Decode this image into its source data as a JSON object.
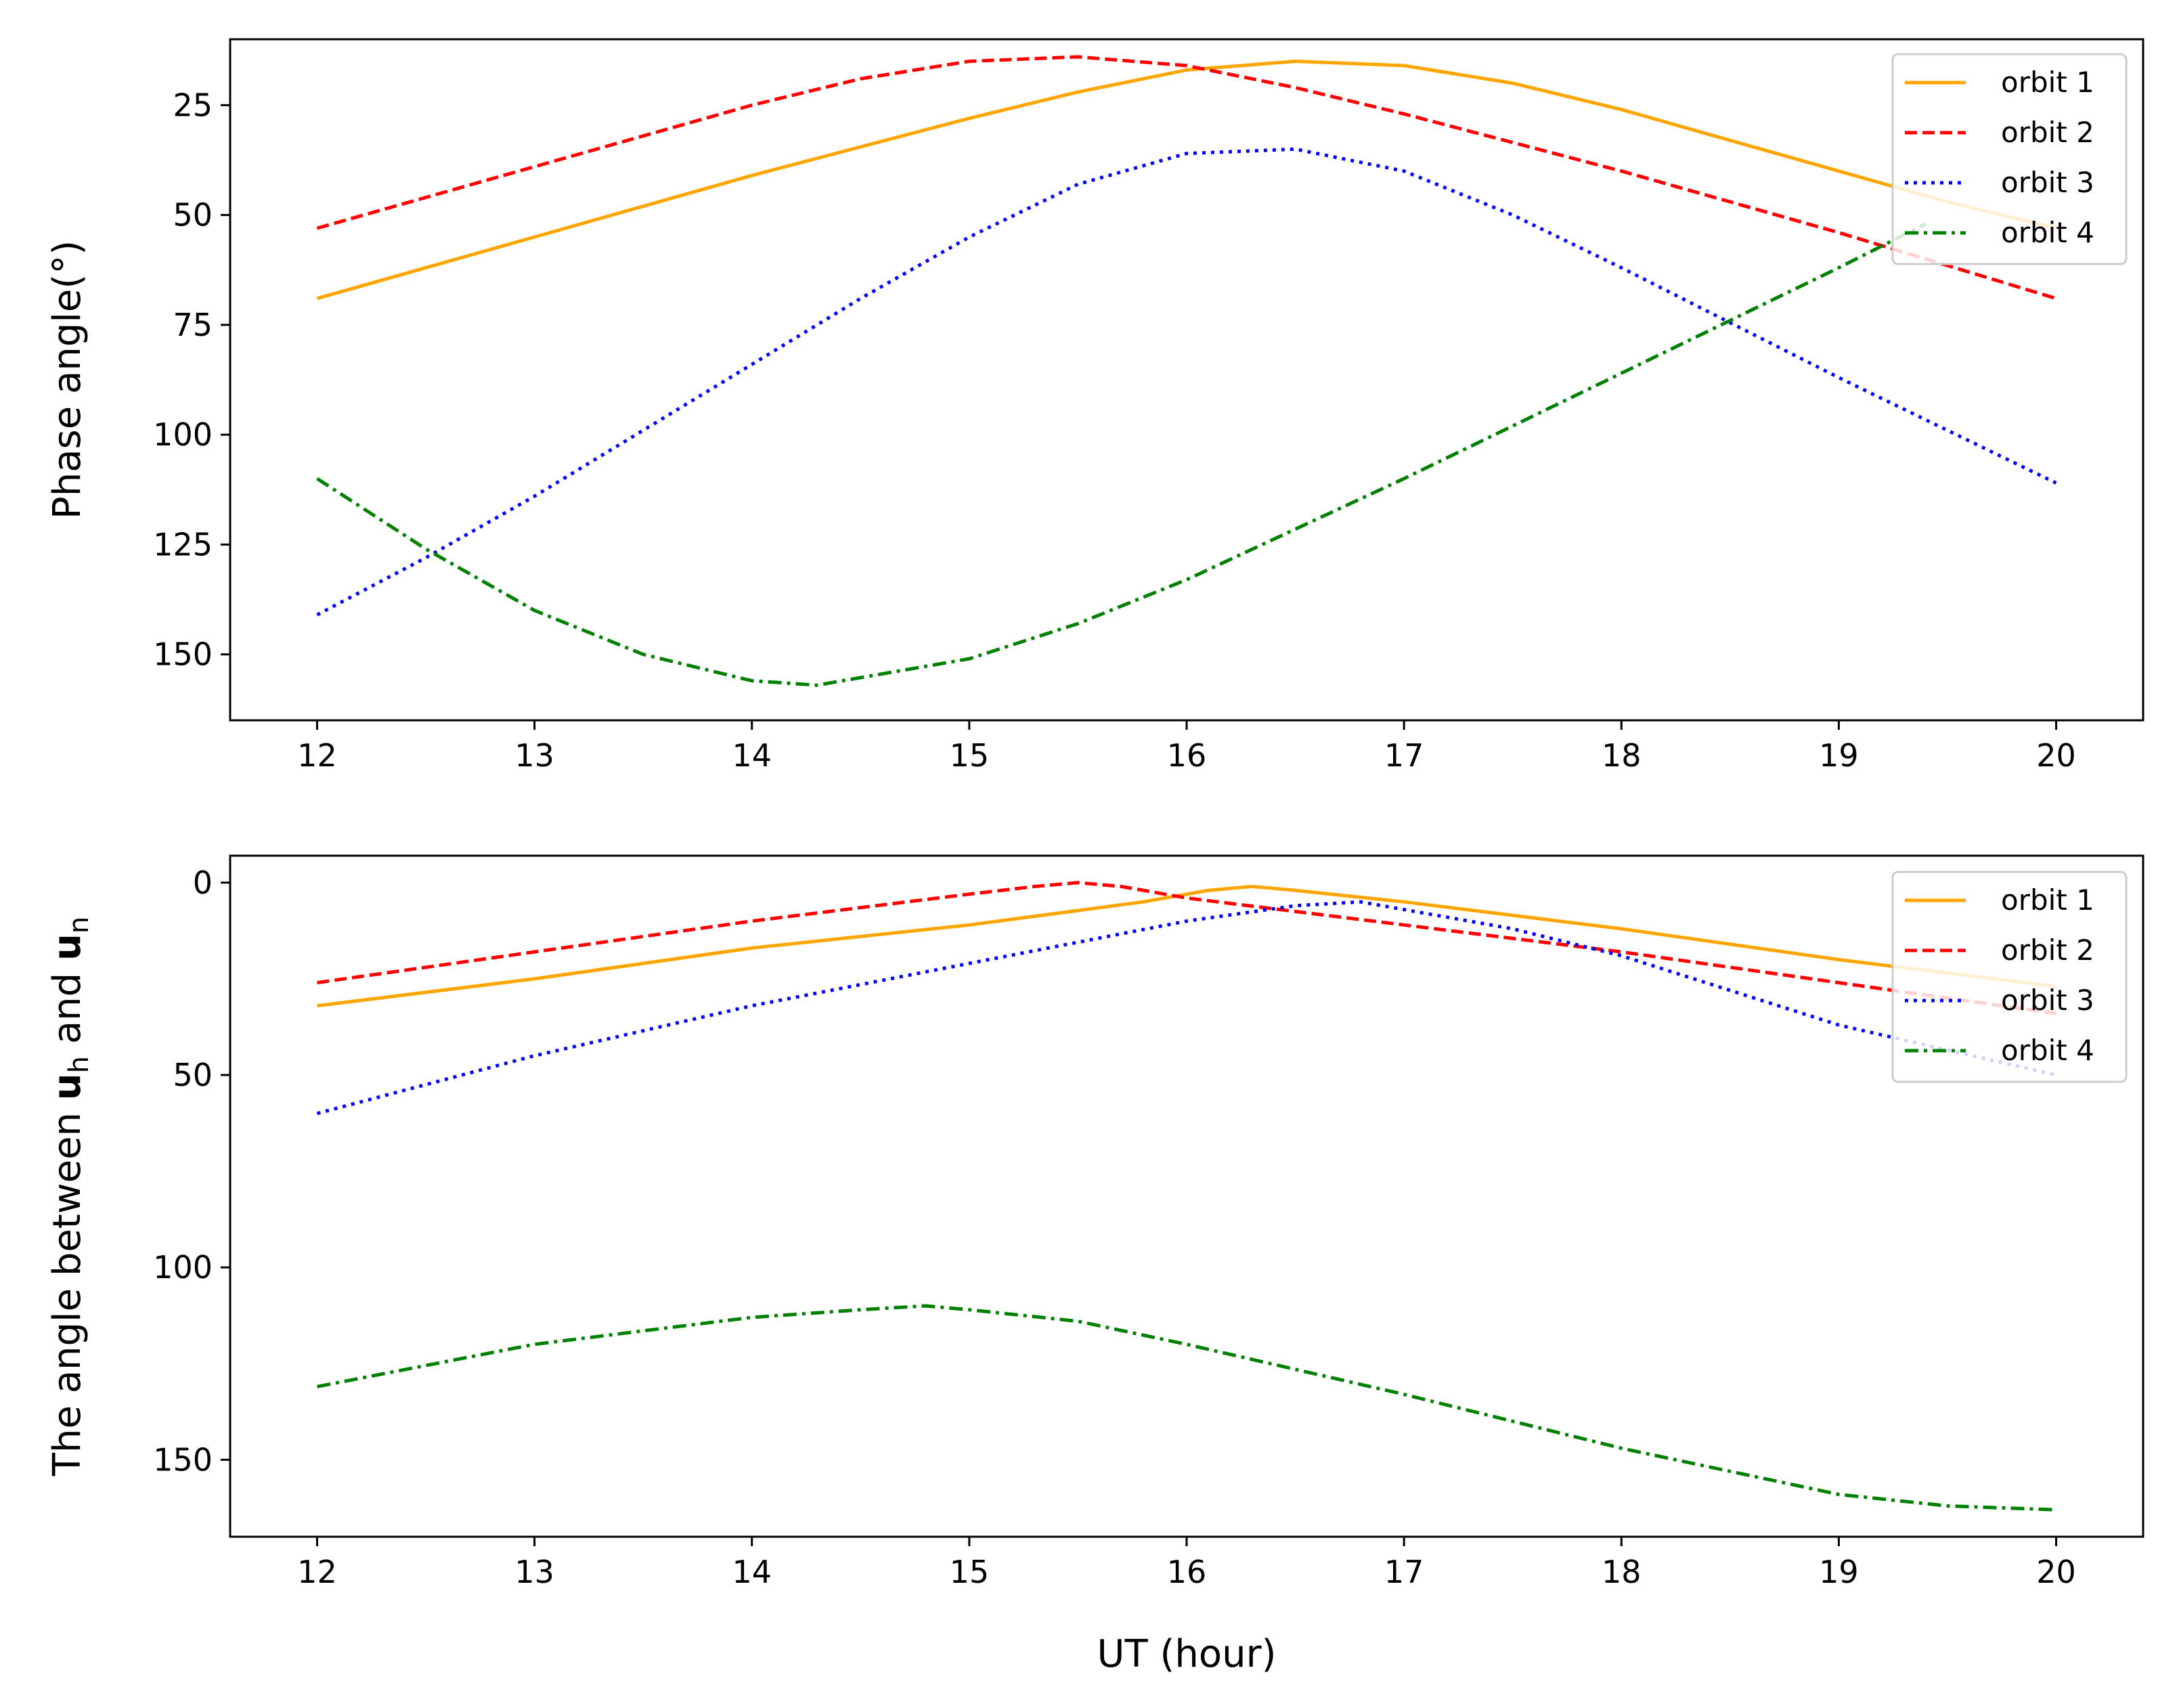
{
  "chart_data": [
    {
      "type": "line",
      "xlabel": "",
      "ylabel": "Phase angle(°)",
      "xlim": [
        11.6,
        20.4
      ],
      "ylim": [
        165,
        10
      ],
      "y_inverted": true,
      "xticks": [
        12,
        13,
        14,
        15,
        16,
        17,
        18,
        19,
        20
      ],
      "xtick_labels": [
        "12",
        "13",
        "14",
        "15",
        "16",
        "17",
        "18",
        "19",
        "20"
      ],
      "yticks": [
        25,
        50,
        75,
        100,
        125,
        150
      ],
      "ytick_labels": [
        "25",
        "50",
        "75",
        "100",
        "125",
        "150"
      ],
      "legend_position": "upper-right",
      "series": [
        {
          "name": "orbit 1",
          "color": "#ffa500",
          "style": "solid",
          "x": [
            12,
            13,
            14,
            15,
            15.5,
            16,
            16.5,
            17,
            17.5,
            18,
            18.5,
            19,
            19.5,
            20
          ],
          "y": [
            69,
            55,
            41,
            28,
            22,
            17,
            15,
            16,
            20,
            26,
            33,
            40,
            47,
            53
          ]
        },
        {
          "name": "orbit 2",
          "color": "#ff0000",
          "style": "dashed",
          "x": [
            12,
            13,
            14,
            14.5,
            15,
            15.5,
            16,
            16.5,
            17,
            18,
            19,
            20
          ],
          "y": [
            53,
            39,
            25,
            19,
            15,
            14,
            16,
            21,
            27,
            40,
            54,
            69
          ]
        },
        {
          "name": "orbit 3",
          "color": "#0000ff",
          "style": "dotted",
          "x": [
            12,
            12.5,
            13,
            13.5,
            14,
            14.5,
            15,
            15.5,
            16,
            16.5,
            17,
            17.5,
            18,
            19,
            20
          ],
          "y": [
            141,
            128,
            114,
            99,
            84,
            69,
            55,
            43,
            36,
            35,
            40,
            50,
            62,
            87,
            111
          ]
        },
        {
          "name": "orbit 4",
          "color": "#008000",
          "style": "dashdot",
          "x": [
            12,
            12.5,
            13,
            13.5,
            14,
            14.3,
            15,
            15.5,
            16,
            17,
            18,
            19,
            19.4
          ],
          "y": [
            110,
            126,
            140,
            150,
            156,
            157,
            151,
            143,
            133,
            110,
            86,
            62,
            52
          ]
        }
      ]
    },
    {
      "type": "line",
      "xlabel": "UT (hour)",
      "ylabel": "The angle between uₕ and uₙ",
      "ylabel_parts": [
        "The angle between ",
        "u",
        "h",
        " and ",
        "u",
        "n"
      ],
      "xlim": [
        11.6,
        20.4
      ],
      "ylim": [
        170,
        -7
      ],
      "y_inverted": true,
      "xticks": [
        12,
        13,
        14,
        15,
        16,
        17,
        18,
        19,
        20
      ],
      "xtick_labels": [
        "12",
        "13",
        "14",
        "15",
        "16",
        "17",
        "18",
        "19",
        "20"
      ],
      "yticks": [
        0,
        50,
        100,
        150
      ],
      "ytick_labels": [
        "0",
        "50",
        "100",
        "150"
      ],
      "legend_position": "upper-right",
      "series": [
        {
          "name": "orbit 1",
          "color": "#ffa500",
          "style": "solid",
          "x": [
            12,
            13,
            14,
            15,
            15.8,
            16.1,
            16.3,
            16.5,
            17,
            18,
            19,
            20
          ],
          "y": [
            32,
            25,
            17,
            11,
            5,
            2,
            1,
            2,
            5,
            12,
            20,
            27
          ]
        },
        {
          "name": "orbit 2",
          "color": "#ff0000",
          "style": "dashed",
          "x": [
            12,
            13,
            14,
            15,
            15.3,
            15.5,
            15.7,
            16,
            17,
            18,
            19,
            20
          ],
          "y": [
            26,
            18,
            10,
            3,
            1,
            0,
            1,
            4,
            11,
            18,
            26,
            34
          ]
        },
        {
          "name": "orbit 3",
          "color": "#0000ff",
          "style": "dotted",
          "x": [
            12,
            13,
            14,
            15,
            16,
            16.5,
            16.8,
            17,
            17.5,
            18,
            19,
            20
          ],
          "y": [
            60,
            45,
            32,
            21,
            10,
            6,
            5,
            7,
            12,
            19,
            37,
            50
          ]
        },
        {
          "name": "orbit 4",
          "color": "#008000",
          "style": "dashdot",
          "x": [
            12,
            13,
            14,
            14.5,
            14.8,
            15,
            15.5,
            16,
            17,
            18,
            19,
            19.5,
            20
          ],
          "y": [
            131,
            120,
            113,
            111,
            110,
            111,
            114,
            120,
            133,
            147,
            159,
            162,
            163
          ]
        }
      ]
    }
  ]
}
